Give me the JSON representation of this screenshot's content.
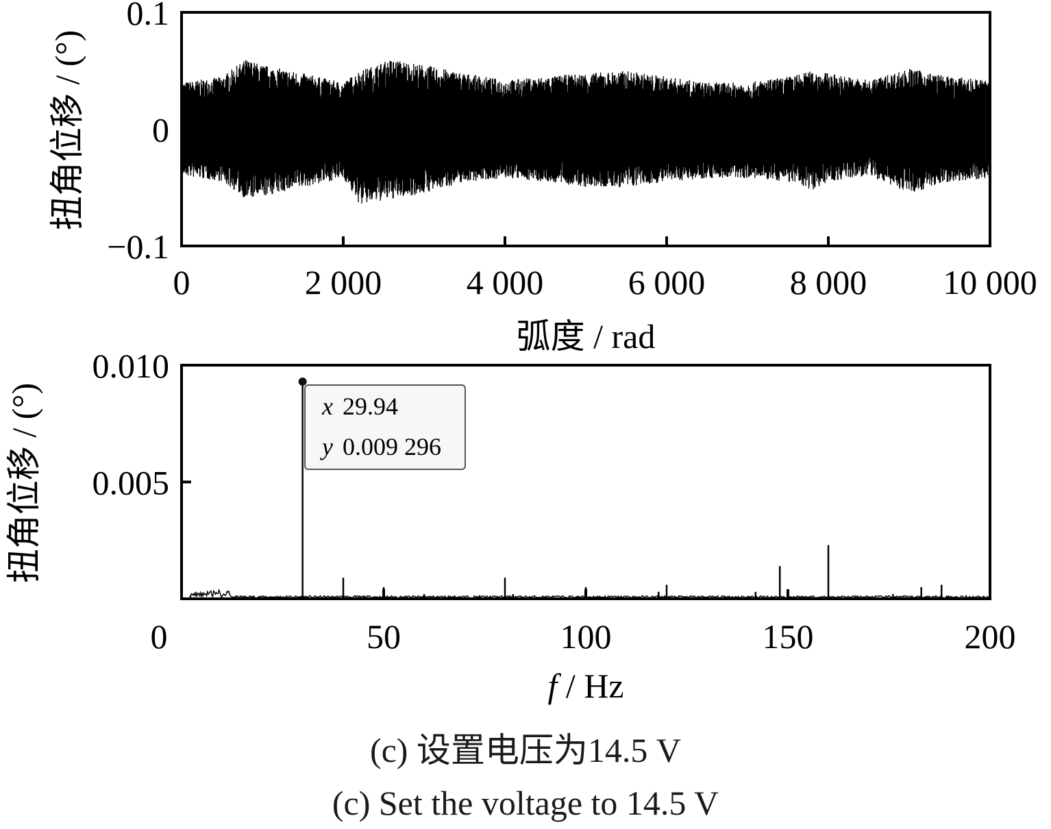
{
  "chart_data": [
    {
      "type": "line",
      "ylabel": "扭角位移 / (°)",
      "xlabel": "弧度 / rad",
      "xlim": [
        0,
        10000
      ],
      "ylim": [
        -0.1,
        0.1
      ],
      "x_tick_labels": [
        "0",
        "2 000",
        "4 000",
        "6 000",
        "8 000",
        "10 000"
      ],
      "x_tick_values": [
        0,
        2000,
        4000,
        6000,
        8000,
        10000
      ],
      "y_tick_labels": [
        "0.1",
        "0",
        "−0.1"
      ],
      "y_tick_values": [
        0.1,
        0,
        -0.1
      ],
      "series": [
        {
          "style": "dense noise signal",
          "color": "#000000",
          "envelope_x": [
            0,
            500,
            800,
            1000,
            1500,
            2000,
            2200,
            2600,
            3000,
            3500,
            4000,
            4500,
            5000,
            5500,
            6000,
            6500,
            7000,
            7500,
            7800,
            8000,
            8500,
            9000,
            9500,
            10000
          ],
          "envelope_upper": [
            0.04,
            0.045,
            0.06,
            0.055,
            0.048,
            0.04,
            0.05,
            0.06,
            0.055,
            0.048,
            0.042,
            0.045,
            0.048,
            0.05,
            0.045,
            0.04,
            0.04,
            0.045,
            0.05,
            0.048,
            0.042,
            0.052,
            0.045,
            0.042
          ],
          "envelope_lower": [
            -0.04,
            -0.045,
            -0.06,
            -0.058,
            -0.05,
            -0.042,
            -0.065,
            -0.06,
            -0.055,
            -0.045,
            -0.042,
            -0.045,
            -0.05,
            -0.05,
            -0.045,
            -0.042,
            -0.042,
            -0.045,
            -0.052,
            -0.045,
            -0.04,
            -0.055,
            -0.045,
            -0.042
          ]
        }
      ]
    },
    {
      "type": "line",
      "ylabel": "扭角位移 / (°)",
      "xlabel_italic": "f",
      "xlabel_rest": " / Hz",
      "xlim": [
        0,
        200
      ],
      "ylim": [
        0,
        0.01
      ],
      "x_tick_labels": [
        "0",
        "50",
        "100",
        "150",
        "200"
      ],
      "x_tick_values": [
        0,
        50,
        100,
        150,
        200
      ],
      "y_tick_labels": [
        "0.010",
        "0.005"
      ],
      "y_tick_values": [
        0.01,
        0.005
      ],
      "peaks": [
        {
          "x": 29.94,
          "y": 0.009296
        },
        {
          "x": 40,
          "y": 0.0009
        },
        {
          "x": 50,
          "y": 0.0005
        },
        {
          "x": 60,
          "y": 0.0002
        },
        {
          "x": 80,
          "y": 0.0009
        },
        {
          "x": 82,
          "y": 0.0002
        },
        {
          "x": 90,
          "y": 0.0001
        },
        {
          "x": 100,
          "y": 0.0005
        },
        {
          "x": 118,
          "y": 0.0003
        },
        {
          "x": 120,
          "y": 0.0006
        },
        {
          "x": 142,
          "y": 0.0003
        },
        {
          "x": 148,
          "y": 0.0014
        },
        {
          "x": 160,
          "y": 0.0023
        },
        {
          "x": 176,
          "y": 0.0002
        },
        {
          "x": 183,
          "y": 0.0005
        },
        {
          "x": 188,
          "y": 0.0006
        }
      ],
      "baseline": 0.0001,
      "datatip": {
        "x_label": "x",
        "x_value": "29.94",
        "y_label": "y",
        "y_value": "0.009 296"
      }
    }
  ],
  "captions": {
    "zh": "(c)  设置电压为14.5 V",
    "en": "(c)  Set the voltage to 14.5 V"
  }
}
